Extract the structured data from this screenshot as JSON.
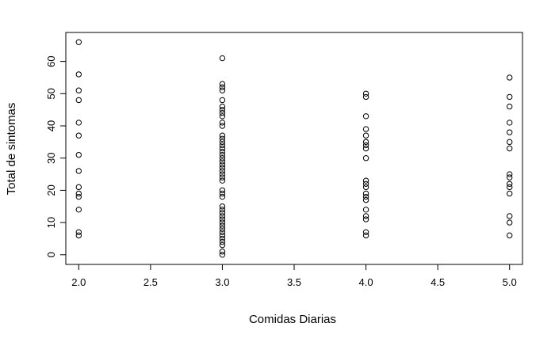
{
  "chart_data": {
    "type": "scatter",
    "title": "",
    "xlabel": "Comidas Diarias",
    "ylabel": "Total de sintomas",
    "xlim": [
      1.91,
      5.09
    ],
    "ylim": [
      -3,
      69
    ],
    "xticks": [
      2.0,
      2.5,
      3.0,
      3.5,
      4.0,
      4.5,
      5.0
    ],
    "xtick_labels": [
      "2.0",
      "2.5",
      "3.0",
      "3.5",
      "4.0",
      "4.5",
      "5.0"
    ],
    "yticks": [
      0,
      10,
      20,
      30,
      40,
      50,
      60
    ],
    "ytick_labels": [
      "0",
      "10",
      "20",
      "30",
      "40",
      "50",
      "60"
    ],
    "grid": false,
    "marker": "open-circle",
    "series": [
      {
        "points": [
          {
            "x": 2,
            "y": 66
          },
          {
            "x": 2,
            "y": 56
          },
          {
            "x": 2,
            "y": 51
          },
          {
            "x": 2,
            "y": 48
          },
          {
            "x": 2,
            "y": 41
          },
          {
            "x": 2,
            "y": 37
          },
          {
            "x": 2,
            "y": 31
          },
          {
            "x": 2,
            "y": 26
          },
          {
            "x": 2,
            "y": 21
          },
          {
            "x": 2,
            "y": 19
          },
          {
            "x": 2,
            "y": 18
          },
          {
            "x": 2,
            "y": 14
          },
          {
            "x": 2,
            "y": 7
          },
          {
            "x": 2,
            "y": 6
          },
          {
            "x": 3,
            "y": 61
          },
          {
            "x": 3,
            "y": 53
          },
          {
            "x": 3,
            "y": 52
          },
          {
            "x": 3,
            "y": 51
          },
          {
            "x": 3,
            "y": 48
          },
          {
            "x": 3,
            "y": 46
          },
          {
            "x": 3,
            "y": 45
          },
          {
            "x": 3,
            "y": 44
          },
          {
            "x": 3,
            "y": 43
          },
          {
            "x": 3,
            "y": 41
          },
          {
            "x": 3,
            "y": 40
          },
          {
            "x": 3,
            "y": 37
          },
          {
            "x": 3,
            "y": 36
          },
          {
            "x": 3,
            "y": 35
          },
          {
            "x": 3,
            "y": 34
          },
          {
            "x": 3,
            "y": 33
          },
          {
            "x": 3,
            "y": 32
          },
          {
            "x": 3,
            "y": 31
          },
          {
            "x": 3,
            "y": 30
          },
          {
            "x": 3,
            "y": 29
          },
          {
            "x": 3,
            "y": 28
          },
          {
            "x": 3,
            "y": 27
          },
          {
            "x": 3,
            "y": 26
          },
          {
            "x": 3,
            "y": 25
          },
          {
            "x": 3,
            "y": 24
          },
          {
            "x": 3,
            "y": 23
          },
          {
            "x": 3,
            "y": 20
          },
          {
            "x": 3,
            "y": 19
          },
          {
            "x": 3,
            "y": 18
          },
          {
            "x": 3,
            "y": 15
          },
          {
            "x": 3,
            "y": 14
          },
          {
            "x": 3,
            "y": 13
          },
          {
            "x": 3,
            "y": 12
          },
          {
            "x": 3,
            "y": 11
          },
          {
            "x": 3,
            "y": 10
          },
          {
            "x": 3,
            "y": 9
          },
          {
            "x": 3,
            "y": 8
          },
          {
            "x": 3,
            "y": 7
          },
          {
            "x": 3,
            "y": 6
          },
          {
            "x": 3,
            "y": 5
          },
          {
            "x": 3,
            "y": 4
          },
          {
            "x": 3,
            "y": 3
          },
          {
            "x": 3,
            "y": 1
          },
          {
            "x": 3,
            "y": 0
          },
          {
            "x": 4,
            "y": 50
          },
          {
            "x": 4,
            "y": 49
          },
          {
            "x": 4,
            "y": 43
          },
          {
            "x": 4,
            "y": 39
          },
          {
            "x": 4,
            "y": 37
          },
          {
            "x": 4,
            "y": 35
          },
          {
            "x": 4,
            "y": 34
          },
          {
            "x": 4,
            "y": 33
          },
          {
            "x": 4,
            "y": 30
          },
          {
            "x": 4,
            "y": 23
          },
          {
            "x": 4,
            "y": 22
          },
          {
            "x": 4,
            "y": 21
          },
          {
            "x": 4,
            "y": 19
          },
          {
            "x": 4,
            "y": 18
          },
          {
            "x": 4,
            "y": 17
          },
          {
            "x": 4,
            "y": 14
          },
          {
            "x": 4,
            "y": 12
          },
          {
            "x": 4,
            "y": 11
          },
          {
            "x": 4,
            "y": 7
          },
          {
            "x": 4,
            "y": 6
          },
          {
            "x": 5,
            "y": 55
          },
          {
            "x": 5,
            "y": 49
          },
          {
            "x": 5,
            "y": 46
          },
          {
            "x": 5,
            "y": 41
          },
          {
            "x": 5,
            "y": 38
          },
          {
            "x": 5,
            "y": 35
          },
          {
            "x": 5,
            "y": 33
          },
          {
            "x": 5,
            "y": 25
          },
          {
            "x": 5,
            "y": 24
          },
          {
            "x": 5,
            "y": 22
          },
          {
            "x": 5,
            "y": 21
          },
          {
            "x": 5,
            "y": 19
          },
          {
            "x": 5,
            "y": 12
          },
          {
            "x": 5,
            "y": 10
          },
          {
            "x": 5,
            "y": 6
          }
        ]
      }
    ]
  }
}
